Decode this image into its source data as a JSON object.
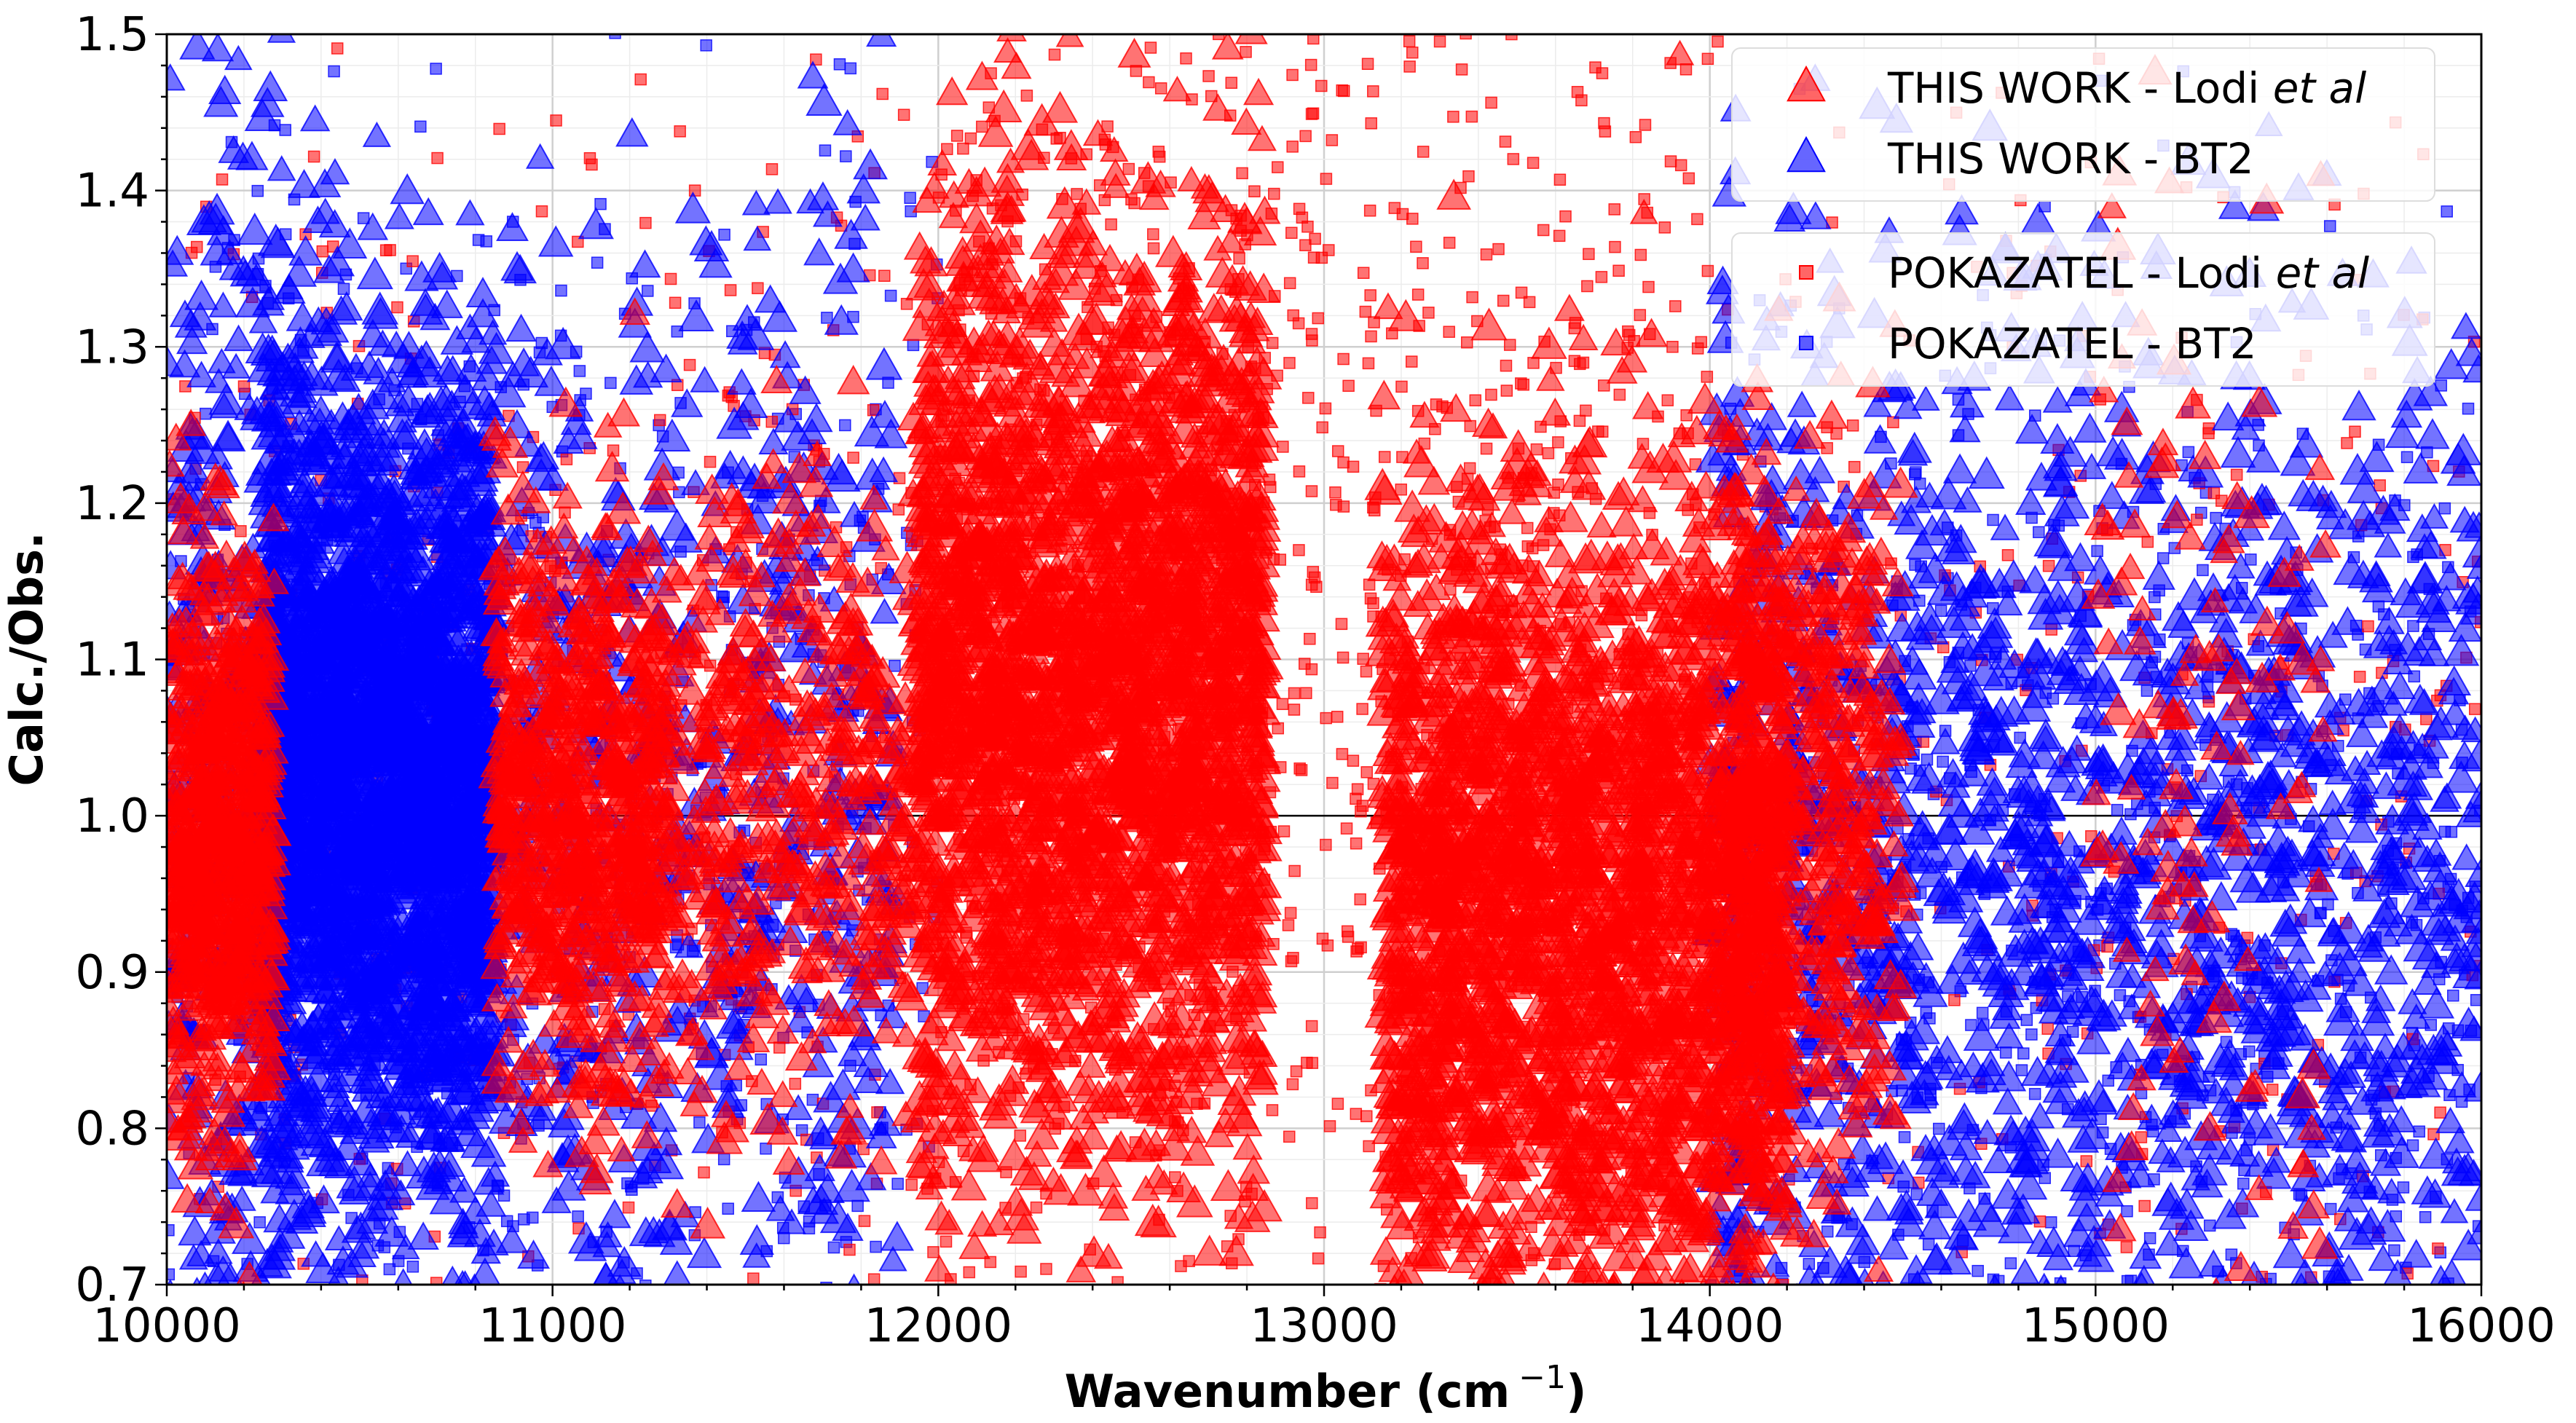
{
  "chart_data": {
    "type": "scatter",
    "xlabel": "Wavenumber (cm",
    "xlabel_superscript": "−1",
    "xlabel_close": ")",
    "ylabel": "Calc./Obs.",
    "xlim": [
      10000,
      16000
    ],
    "ylim": [
      0.7,
      1.5
    ],
    "grid": true,
    "reference_line_y": 1.0,
    "x_ticks": [
      10000,
      11000,
      12000,
      13000,
      14000,
      15000,
      16000
    ],
    "x_tick_labels": [
      "10000",
      "11000",
      "12000",
      "13000",
      "14000",
      "15000",
      "16000"
    ],
    "y_ticks": [
      0.7,
      0.8,
      0.9,
      1.0,
      1.1,
      1.2,
      1.3,
      1.4,
      1.5
    ],
    "y_tick_labels": [
      "0.7",
      "0.8",
      "0.9",
      "1.0",
      "1.1",
      "1.2",
      "1.3",
      "1.4",
      "1.5"
    ],
    "legend_placement": "top-right",
    "legend_groups": [
      [
        {
          "prefix": "THIS WORK - ",
          "name": "Lodi ",
          "italic": "et al",
          "marker": "triangle",
          "color": "#ff0000"
        },
        {
          "prefix": "THIS WORK - ",
          "name": "BT2",
          "italic": "",
          "marker": "triangle",
          "color": "#0000ff"
        }
      ],
      [
        {
          "prefix": "POKAZATEL - ",
          "name": "Lodi ",
          "italic": "et al",
          "marker": "square",
          "color": "#ff0000"
        },
        {
          "prefix": "POKAZATEL - ",
          "name": "BT2",
          "italic": "",
          "marker": "square",
          "color": "#0000ff"
        }
      ]
    ],
    "series": [
      {
        "name": "THIS WORK - Lodi et al",
        "marker": "triangle",
        "color": "#ff0000",
        "density_clusters": [
          {
            "x_range": [
              10000,
              10280
            ],
            "y_center": 0.99,
            "y_spread": 0.09,
            "count": 700
          },
          {
            "x_range": [
              10850,
              11300
            ],
            "y_center": 1.0,
            "y_spread": 0.09,
            "count": 700
          },
          {
            "x_range": [
              11300,
              11950
            ],
            "y_center": 1.01,
            "y_spread": 0.1,
            "count": 450
          },
          {
            "x_range": [
              11950,
              12850
            ],
            "y_center": 1.08,
            "y_spread": 0.15,
            "count": 2600
          },
          {
            "x_range": [
              13150,
              14200
            ],
            "y_center": 0.93,
            "y_spread": 0.14,
            "count": 2600
          },
          {
            "x_range": [
              14050,
              14500
            ],
            "y_center": 1.0,
            "y_spread": 0.12,
            "count": 450
          },
          {
            "x_range": [
              15000,
              15600
            ],
            "y_center": 1.02,
            "y_spread": 0.2,
            "count": 120
          }
        ]
      },
      {
        "name": "THIS WORK - BT2",
        "marker": "triangle",
        "color": "#0000ff",
        "density_clusters": [
          {
            "x_range": [
              10000,
              10300
            ],
            "y_center": 1.0,
            "y_spread": 0.3,
            "count": 400
          },
          {
            "x_range": [
              10250,
              10850
            ],
            "y_center": 1.03,
            "y_spread": 0.13,
            "count": 2600
          },
          {
            "x_range": [
              10850,
              11900
            ],
            "y_center": 1.0,
            "y_spread": 0.22,
            "count": 600
          },
          {
            "x_range": [
              14000,
              16000
            ],
            "y_center": 0.95,
            "y_spread": 0.2,
            "count": 1700
          }
        ]
      },
      {
        "name": "POKAZATEL - Lodi et al",
        "marker": "square",
        "color": "#ff0000",
        "density_clusters": [
          {
            "x_range": [
              10000,
              12000
            ],
            "y_center": 1.02,
            "y_spread": 0.25,
            "count": 500
          },
          {
            "x_range": [
              12000,
              13000
            ],
            "y_center": 1.15,
            "y_spread": 0.25,
            "count": 700
          },
          {
            "x_range": [
              13000,
              14000
            ],
            "y_center": 1.1,
            "y_spread": 0.25,
            "count": 500
          },
          {
            "x_range": [
              14000,
              16000
            ],
            "y_center": 1.05,
            "y_spread": 0.25,
            "count": 300
          }
        ]
      },
      {
        "name": "POKAZATEL - BT2",
        "marker": "square",
        "color": "#0000ff",
        "density_clusters": [
          {
            "x_range": [
              10000,
              12000
            ],
            "y_center": 1.0,
            "y_spread": 0.25,
            "count": 700
          },
          {
            "x_range": [
              14000,
              16000
            ],
            "y_center": 0.95,
            "y_spread": 0.22,
            "count": 700
          }
        ]
      }
    ]
  }
}
